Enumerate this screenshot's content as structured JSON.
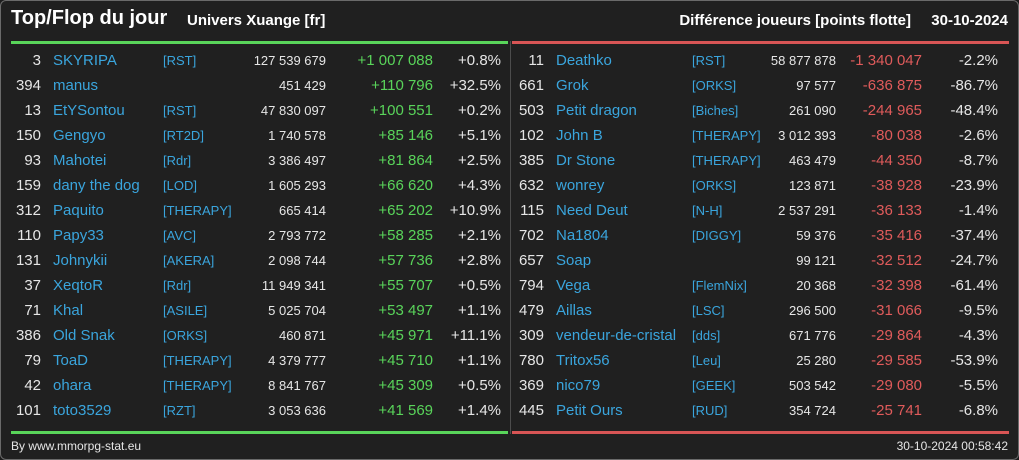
{
  "header": {
    "title": "Top/Flop du jour",
    "universe": "Univers Xuange [fr]",
    "subtitle": "Différence joueurs [points flotte]",
    "date": "30-10-2024"
  },
  "colors": {
    "positive": "#59d45a",
    "negative": "#e05b5b",
    "link": "#3aa5dd"
  },
  "top": [
    {
      "rank": "3",
      "name": "SKYRIPA",
      "ally": "[RST]",
      "points": "127 539 679",
      "diff": "+1 007 088",
      "pct": "+0.8%"
    },
    {
      "rank": "394",
      "name": "manus",
      "ally": "",
      "points": "451 429",
      "diff": "+110 796",
      "pct": "+32.5%"
    },
    {
      "rank": "13",
      "name": "EtYSontou",
      "ally": "[RST]",
      "points": "47 830 097",
      "diff": "+100 551",
      "pct": "+0.2%"
    },
    {
      "rank": "150",
      "name": "Gengyo",
      "ally": "[RT2D]",
      "points": "1 740 578",
      "diff": "+85 146",
      "pct": "+5.1%"
    },
    {
      "rank": "93",
      "name": "Mahotei",
      "ally": "[Rdr]",
      "points": "3 386 497",
      "diff": "+81 864",
      "pct": "+2.5%"
    },
    {
      "rank": "159",
      "name": "dany the dog",
      "ally": "[LOD]",
      "points": "1 605 293",
      "diff": "+66 620",
      "pct": "+4.3%"
    },
    {
      "rank": "312",
      "name": "Paquito",
      "ally": "[THERAPY]",
      "points": "665 414",
      "diff": "+65 202",
      "pct": "+10.9%"
    },
    {
      "rank": "110",
      "name": "Papy33",
      "ally": "[AVC]",
      "points": "2 793 772",
      "diff": "+58 285",
      "pct": "+2.1%"
    },
    {
      "rank": "131",
      "name": "Johnykii",
      "ally": "[AKERA]",
      "points": "2 098 744",
      "diff": "+57 736",
      "pct": "+2.8%"
    },
    {
      "rank": "37",
      "name": "XeqtoR",
      "ally": "[Rdr]",
      "points": "11 949 341",
      "diff": "+55 707",
      "pct": "+0.5%"
    },
    {
      "rank": "71",
      "name": "Khal",
      "ally": "[ASILE]",
      "points": "5 025 704",
      "diff": "+53 497",
      "pct": "+1.1%"
    },
    {
      "rank": "386",
      "name": "Old Snak",
      "ally": "[ORKS]",
      "points": "460 871",
      "diff": "+45 971",
      "pct": "+11.1%"
    },
    {
      "rank": "79",
      "name": "ToaD",
      "ally": "[THERAPY]",
      "points": "4 379 777",
      "diff": "+45 710",
      "pct": "+1.1%"
    },
    {
      "rank": "42",
      "name": "ohara",
      "ally": "[THERAPY]",
      "points": "8 841 767",
      "diff": "+45 309",
      "pct": "+0.5%"
    },
    {
      "rank": "101",
      "name": "toto3529",
      "ally": "[RZT]",
      "points": "3 053 636",
      "diff": "+41 569",
      "pct": "+1.4%"
    }
  ],
  "flop": [
    {
      "rank": "11",
      "name": "Deathko",
      "ally": "[RST]",
      "points": "58 877 878",
      "diff": "-1 340 047",
      "pct": "-2.2%"
    },
    {
      "rank": "661",
      "name": "Grok",
      "ally": "[ORKS]",
      "points": "97 577",
      "diff": "-636 875",
      "pct": "-86.7%"
    },
    {
      "rank": "503",
      "name": "Petit dragon",
      "ally": "[Biches]",
      "points": "261 090",
      "diff": "-244 965",
      "pct": "-48.4%"
    },
    {
      "rank": "102",
      "name": "John B",
      "ally": "[THERAPY]",
      "points": "3 012 393",
      "diff": "-80 038",
      "pct": "-2.6%"
    },
    {
      "rank": "385",
      "name": "Dr Stone",
      "ally": "[THERAPY]",
      "points": "463 479",
      "diff": "-44 350",
      "pct": "-8.7%"
    },
    {
      "rank": "632",
      "name": "wonrey",
      "ally": "[ORKS]",
      "points": "123 871",
      "diff": "-38 928",
      "pct": "-23.9%"
    },
    {
      "rank": "115",
      "name": "Need Deut",
      "ally": "[N-H]",
      "points": "2 537 291",
      "diff": "-36 133",
      "pct": "-1.4%"
    },
    {
      "rank": "702",
      "name": "Na1804",
      "ally": "[DIGGY]",
      "points": "59 376",
      "diff": "-35 416",
      "pct": "-37.4%"
    },
    {
      "rank": "657",
      "name": "Soap",
      "ally": "",
      "points": "99 121",
      "diff": "-32 512",
      "pct": "-24.7%"
    },
    {
      "rank": "794",
      "name": "Vega",
      "ally": "[FlemNix]",
      "points": "20 368",
      "diff": "-32 398",
      "pct": "-61.4%"
    },
    {
      "rank": "479",
      "name": "Aillas",
      "ally": "[LSC]",
      "points": "296 500",
      "diff": "-31 066",
      "pct": "-9.5%"
    },
    {
      "rank": "309",
      "name": "vendeur-de-cristal",
      "ally": "[dds]",
      "points": "671 776",
      "diff": "-29 864",
      "pct": "-4.3%"
    },
    {
      "rank": "780",
      "name": "Tritox56",
      "ally": "[Leu]",
      "points": "25 280",
      "diff": "-29 585",
      "pct": "-53.9%"
    },
    {
      "rank": "369",
      "name": "nico79",
      "ally": "[GEEK]",
      "points": "503 542",
      "diff": "-29 080",
      "pct": "-5.5%"
    },
    {
      "rank": "445",
      "name": "Petit Ours",
      "ally": "[RUD]",
      "points": "354 724",
      "diff": "-25 741",
      "pct": "-6.8%"
    }
  ],
  "footer": {
    "source": "By www.mmorpg-stat.eu",
    "timestamp": "30-10-2024 00:58:42"
  }
}
